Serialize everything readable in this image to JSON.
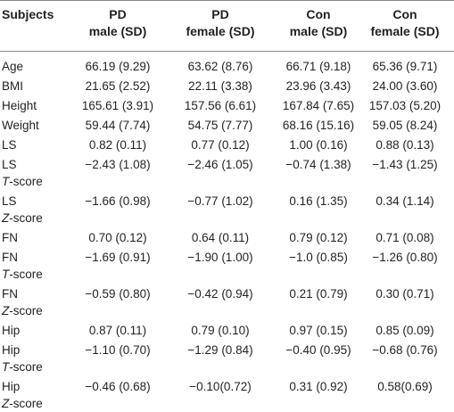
{
  "header": {
    "subjects": "Subjects",
    "col1": [
      "PD",
      "male (SD)"
    ],
    "col2": [
      "PD",
      "female (SD)"
    ],
    "col3": [
      "Con",
      "male (SD)"
    ],
    "col4": [
      "Con",
      "female (SD)"
    ]
  },
  "rows": [
    {
      "label": "Age",
      "sub": "",
      "sub_suffix": "",
      "v": [
        "66.19 (9.29)",
        "63.62 (8.76)",
        "66.71 (9.18)",
        "65.36 (9.71)"
      ]
    },
    {
      "label": "BMI",
      "sub": "",
      "sub_suffix": "",
      "v": [
        "21.65 (2.52)",
        "22.11 (3.38)",
        "23.96 (3.43)",
        "24.00 (3.60)"
      ]
    },
    {
      "label": "Height",
      "sub": "",
      "sub_suffix": "",
      "v": [
        "165.61 (3.91)",
        "157.56 (6.61)",
        "167.84 (7.65)",
        "157.03 (5.20)"
      ]
    },
    {
      "label": "Weight",
      "sub": "",
      "sub_suffix": "",
      "v": [
        "59.44 (7.74)",
        "54.75 (7.77)",
        "68.16 (15.16)",
        "59.05 (8.24)"
      ]
    },
    {
      "label": "LS",
      "sub": "",
      "sub_suffix": "",
      "v": [
        "0.82 (0.11)",
        "0.77 (0.12)",
        "1.00 (0.16)",
        "0.88 (0.13)"
      ]
    },
    {
      "label": "LS",
      "sub": "T",
      "sub_suffix": "-score",
      "v": [
        "−2.43 (1.08)",
        "−2.46 (1.05)",
        "−0.74 (1.38)",
        "−1.43 (1.25)"
      ]
    },
    {
      "label": "LS",
      "sub": "Z",
      "sub_suffix": "-score",
      "v": [
        "−1.66 (0.98)",
        "−0.77 (1.02)",
        "0.16 (1.35)",
        "0.34 (1.14)"
      ]
    },
    {
      "label": "FN",
      "sub": "",
      "sub_suffix": "",
      "v": [
        "0.70 (0.12)",
        "0.64 (0.11)",
        "0.79 (0.12)",
        "0.71 (0.08)"
      ]
    },
    {
      "label": "FN",
      "sub": "T",
      "sub_suffix": "-score",
      "v": [
        "−1.69 (0.91)",
        "−1.90 (1.00)",
        "−1.0 (0.85)",
        "−1.26 (0.80)"
      ]
    },
    {
      "label": "FN",
      "sub": "Z",
      "sub_suffix": "-score",
      "v": [
        "−0.59 (0.80)",
        "−0.42 (0.94)",
        "0.21 (0.79)",
        "0.30 (0.71)"
      ]
    },
    {
      "label": "Hip",
      "sub": "",
      "sub_suffix": "",
      "v": [
        "0.87 (0.11)",
        "0.79 (0.10)",
        "0.97 (0.15)",
        "0.85 (0.09)"
      ]
    },
    {
      "label": "Hip",
      "sub": "T",
      "sub_suffix": "-score",
      "v": [
        "−1.10 (0.70)",
        "−1.29 (0.84)",
        "−0.40 (0.95)",
        "−0.68 (0.76)"
      ]
    },
    {
      "label": "Hip",
      "sub": "Z",
      "sub_suffix": "-score",
      "v": [
        "−0.46 (0.68)",
        "−0.10(0.72)",
        "0.31 (0.92)",
        "0.58(0.69)"
      ]
    }
  ]
}
